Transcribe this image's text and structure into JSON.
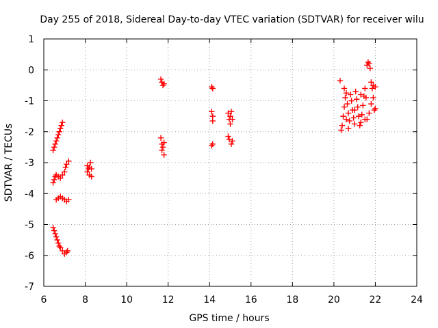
{
  "chart_data": {
    "type": "scatter",
    "title": "Day 255 of 2018, Sidereal Day-to-day VTEC variation (SDTVAR) for receiver wilu",
    "xlabel": "GPS time / hours",
    "ylabel": "SDTVAR / TECUs",
    "xlim": [
      6,
      24
    ],
    "ylim": [
      -7,
      1
    ],
    "xticks": [
      6,
      8,
      10,
      12,
      14,
      16,
      18,
      20,
      22,
      24
    ],
    "yticks": [
      1,
      0,
      -1,
      -2,
      -3,
      -4,
      -5,
      -6,
      -7
    ],
    "grid": true,
    "legend": "none",
    "marker": "+",
    "color": "#ff0000",
    "series": [
      {
        "name": "SDTVAR",
        "points": [
          [
            6.45,
            -2.6
          ],
          [
            6.5,
            -2.5
          ],
          [
            6.55,
            -2.4
          ],
          [
            6.6,
            -2.3
          ],
          [
            6.65,
            -2.2
          ],
          [
            6.7,
            -2.1
          ],
          [
            6.75,
            -2.0
          ],
          [
            6.8,
            -1.9
          ],
          [
            6.85,
            -1.8
          ],
          [
            6.9,
            -1.7
          ],
          [
            6.45,
            -3.65
          ],
          [
            6.5,
            -3.55
          ],
          [
            6.55,
            -3.45
          ],
          [
            6.6,
            -3.4
          ],
          [
            6.7,
            -3.45
          ],
          [
            6.8,
            -3.5
          ],
          [
            6.9,
            -3.4
          ],
          [
            7.0,
            -3.3
          ],
          [
            7.05,
            -3.15
          ],
          [
            7.1,
            -3.05
          ],
          [
            7.2,
            -2.95
          ],
          [
            6.6,
            -4.2
          ],
          [
            6.7,
            -4.15
          ],
          [
            6.8,
            -4.1
          ],
          [
            6.9,
            -4.15
          ],
          [
            7.0,
            -4.2
          ],
          [
            7.1,
            -4.25
          ],
          [
            7.2,
            -4.2
          ],
          [
            6.45,
            -5.1
          ],
          [
            6.5,
            -5.2
          ],
          [
            6.55,
            -5.3
          ],
          [
            6.6,
            -5.4
          ],
          [
            6.65,
            -5.5
          ],
          [
            6.7,
            -5.6
          ],
          [
            6.75,
            -5.7
          ],
          [
            6.8,
            -5.75
          ],
          [
            6.9,
            -5.85
          ],
          [
            7.0,
            -5.95
          ],
          [
            7.1,
            -5.9
          ],
          [
            7.15,
            -5.85
          ],
          [
            8.1,
            -3.1
          ],
          [
            8.1,
            -3.3
          ],
          [
            8.15,
            -3.2
          ],
          [
            8.2,
            -3.4
          ],
          [
            8.25,
            -3.0
          ],
          [
            8.3,
            -3.2
          ],
          [
            8.3,
            -3.45
          ],
          [
            8.2,
            -3.15
          ],
          [
            11.65,
            -0.3
          ],
          [
            11.7,
            -0.4
          ],
          [
            11.75,
            -0.5
          ],
          [
            11.8,
            -0.45
          ],
          [
            11.65,
            -2.2
          ],
          [
            11.7,
            -2.4
          ],
          [
            11.75,
            -2.5
          ],
          [
            11.8,
            -2.35
          ],
          [
            11.8,
            -2.75
          ],
          [
            11.7,
            -2.6
          ],
          [
            14.1,
            -0.55
          ],
          [
            14.15,
            -0.6
          ],
          [
            14.1,
            -1.35
          ],
          [
            14.15,
            -1.5
          ],
          [
            14.15,
            -1.65
          ],
          [
            14.1,
            -2.45
          ],
          [
            14.15,
            -2.4
          ],
          [
            14.9,
            -1.4
          ],
          [
            14.95,
            -1.6
          ],
          [
            15.0,
            -1.5
          ],
          [
            15.05,
            -1.35
          ],
          [
            15.0,
            -1.75
          ],
          [
            15.1,
            -1.6
          ],
          [
            14.9,
            -2.15
          ],
          [
            14.95,
            -2.25
          ],
          [
            15.05,
            -2.4
          ],
          [
            15.1,
            -2.3
          ],
          [
            20.3,
            -0.35
          ],
          [
            20.35,
            -1.95
          ],
          [
            20.4,
            -1.8
          ],
          [
            20.45,
            -1.5
          ],
          [
            20.5,
            -1.2
          ],
          [
            20.55,
            -0.9
          ],
          [
            20.6,
            -0.75
          ],
          [
            20.65,
            -1.1
          ],
          [
            20.7,
            -1.4
          ],
          [
            20.75,
            -1.65
          ],
          [
            20.8,
            -0.8
          ],
          [
            20.85,
            -1.0
          ],
          [
            20.9,
            -1.3
          ],
          [
            20.95,
            -1.55
          ],
          [
            21.0,
            -1.75
          ],
          [
            21.05,
            -0.7
          ],
          [
            21.1,
            -0.95
          ],
          [
            21.15,
            -1.2
          ],
          [
            21.2,
            -1.5
          ],
          [
            21.25,
            -1.8
          ],
          [
            21.3,
            -1.7
          ],
          [
            21.35,
            -1.45
          ],
          [
            21.4,
            -1.15
          ],
          [
            21.45,
            -0.85
          ],
          [
            21.5,
            -0.6
          ],
          [
            21.55,
            -0.9
          ],
          [
            21.6,
            0.15
          ],
          [
            21.65,
            0.25
          ],
          [
            21.7,
            0.2
          ],
          [
            21.75,
            0.05
          ],
          [
            21.8,
            -0.4
          ],
          [
            21.85,
            -0.6
          ],
          [
            21.9,
            -0.9
          ],
          [
            21.95,
            -1.3
          ],
          [
            21.6,
            -1.6
          ],
          [
            21.7,
            -1.4
          ],
          [
            21.8,
            -1.1
          ],
          [
            21.9,
            -0.5
          ],
          [
            22.0,
            -0.55
          ],
          [
            22.0,
            -1.25
          ],
          [
            20.5,
            -0.6
          ],
          [
            20.7,
            -1.9
          ],
          [
            21.0,
            -1.3
          ],
          [
            21.3,
            -0.8
          ],
          [
            21.5,
            -1.6
          ],
          [
            20.6,
            -1.6
          ]
        ]
      }
    ]
  }
}
